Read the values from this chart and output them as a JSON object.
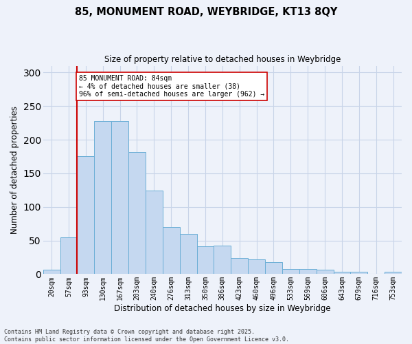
{
  "title_line1": "85, MONUMENT ROAD, WEYBRIDGE, KT13 8QY",
  "title_line2": "Size of property relative to detached houses in Weybridge",
  "xlabel": "Distribution of detached houses by size in Weybridge",
  "ylabel": "Number of detached properties",
  "categories": [
    "20sqm",
    "57sqm",
    "93sqm",
    "130sqm",
    "167sqm",
    "203sqm",
    "240sqm",
    "276sqm",
    "313sqm",
    "350sqm",
    "386sqm",
    "423sqm",
    "460sqm",
    "496sqm",
    "533sqm",
    "569sqm",
    "606sqm",
    "643sqm",
    "679sqm",
    "716sqm",
    "753sqm"
  ],
  "values": [
    7,
    55,
    175,
    228,
    228,
    182,
    124,
    70,
    60,
    41,
    42,
    24,
    22,
    18,
    8,
    8,
    7,
    3,
    4,
    0,
    3
  ],
  "bar_color": "#c5d8f0",
  "bar_edge_color": "#6aaed6",
  "grid_color": "#c8d4e8",
  "vline_color": "#cc0000",
  "annotation_text": "85 MONUMENT ROAD: 84sqm\n← 4% of detached houses are smaller (38)\n96% of semi-detached houses are larger (962) →",
  "annotation_box_color": "#ffffff",
  "annotation_box_edge": "#cc0000",
  "ylim": [
    0,
    310
  ],
  "yticks": [
    0,
    50,
    100,
    150,
    200,
    250,
    300
  ],
  "footnote": "Contains HM Land Registry data © Crown copyright and database right 2025.\nContains public sector information licensed under the Open Government Licence v3.0.",
  "bg_color": "#eef2fa"
}
